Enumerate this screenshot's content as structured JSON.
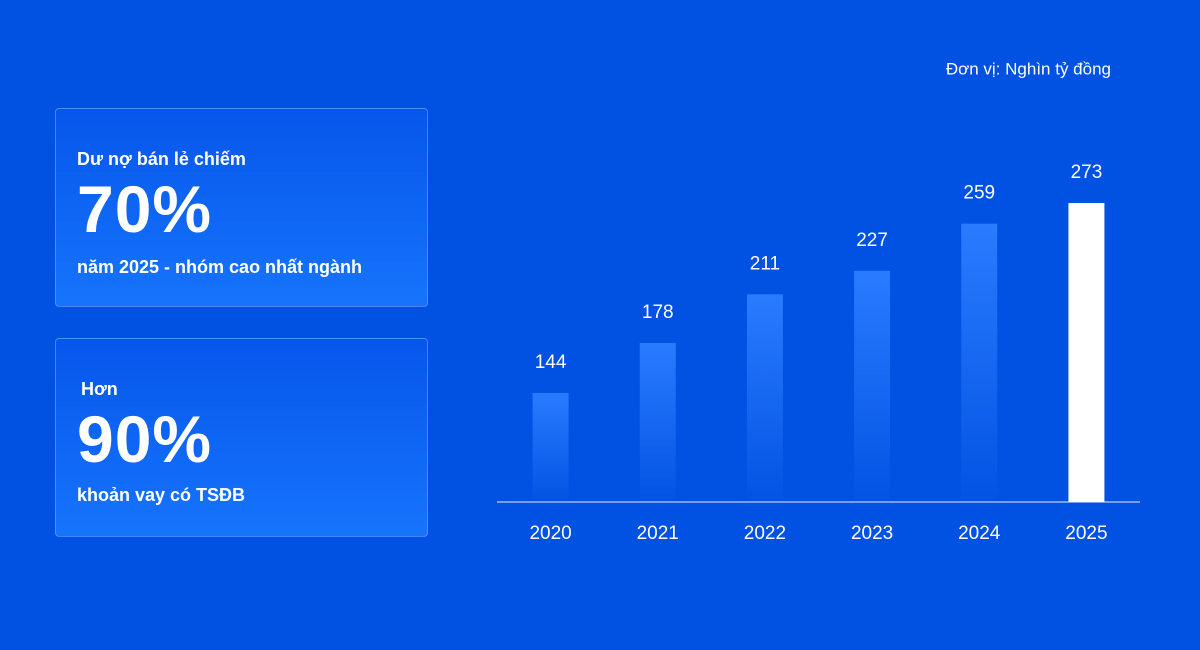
{
  "cards": [
    {
      "lead": "Dư nợ bán lẻ chiếm",
      "stat": "70%",
      "note": "năm 2025 - nhóm cao nhất ngành"
    },
    {
      "lead": "Hơn",
      "stat": "90%",
      "note": "khoản vay có TSĐB"
    }
  ],
  "chart_data": {
    "type": "bar",
    "unit": "Đơn vị: Nghìn tỷ đồng",
    "categories": [
      "2020",
      "2021",
      "2022",
      "2023",
      "2024",
      "2025"
    ],
    "values": [
      144,
      178,
      211,
      227,
      259,
      273
    ],
    "colors": [
      "#2a7bff",
      "#2a7bff",
      "#2a7bff",
      "#2a7bff",
      "#2a7bff",
      "#ffffff"
    ],
    "ylim": [
      70,
      290
    ]
  }
}
